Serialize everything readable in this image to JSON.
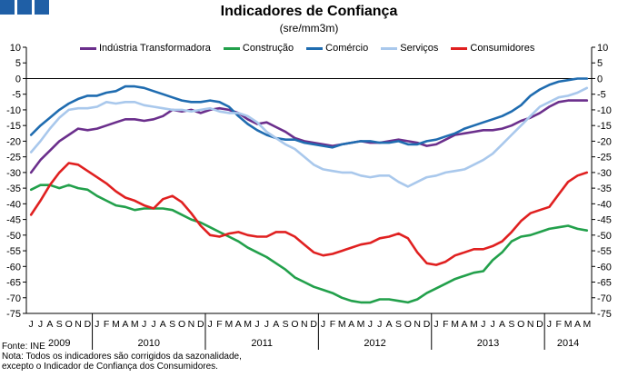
{
  "title": "Indicadores de Confiança",
  "subtitle": "(sre/mm3m)",
  "source": "Fonte: INE",
  "note": "Nota: Todos os indicadores são corrigidos da sazonalidade, excepto o Indicador de Confiança dos Consumidores.",
  "chart_data": {
    "type": "line",
    "ylim": [
      -75,
      10
    ],
    "yticks": [
      10,
      5,
      0,
      -5,
      -10,
      -15,
      -20,
      -25,
      -30,
      -35,
      -40,
      -45,
      -50,
      -55,
      -60,
      -65,
      -70,
      -75
    ],
    "month_labels": [
      "J",
      "J",
      "A",
      "S",
      "O",
      "N",
      "D",
      "J",
      "F",
      "M",
      "A",
      "M",
      "J",
      "J",
      "A",
      "S",
      "O",
      "N",
      "D",
      "J",
      "F",
      "M",
      "A",
      "M",
      "J",
      "J",
      "A",
      "S",
      "O",
      "N",
      "D",
      "J",
      "F",
      "M",
      "A",
      "M",
      "J",
      "J",
      "A",
      "S",
      "O",
      "N",
      "D",
      "J",
      "F",
      "M",
      "A",
      "M",
      "J",
      "J",
      "A",
      "S",
      "O",
      "N",
      "D",
      "J",
      "F",
      "M",
      "A",
      "M"
    ],
    "years": [
      {
        "label": "2009",
        "span": 7
      },
      {
        "label": "2010",
        "span": 12
      },
      {
        "label": "2011",
        "span": 12
      },
      {
        "label": "2012",
        "span": 12
      },
      {
        "label": "2013",
        "span": 12
      },
      {
        "label": "2014",
        "span": 5
      }
    ],
    "series": [
      {
        "name": "Indústria Transformadora",
        "color": "#6b2f8c",
        "values": [
          -30,
          -26,
          -23,
          -20,
          -18,
          -16,
          -16.5,
          -16,
          -15,
          -14,
          -13,
          -13,
          -13.5,
          -13,
          -12,
          -10,
          -10.5,
          -10,
          -11,
          -10,
          -9.5,
          -10,
          -11,
          -13,
          -14.5,
          -14,
          -15.5,
          -17,
          -19,
          -20,
          -20.5,
          -21,
          -21.5,
          -21,
          -20.5,
          -20,
          -20.5,
          -20.5,
          -20,
          -19.5,
          -20,
          -20.5,
          -21.5,
          -21,
          -19.5,
          -18,
          -17.5,
          -17,
          -16.5,
          -16.5,
          -16,
          -15,
          -13.5,
          -12.5,
          -11,
          -9,
          -7.5,
          -7,
          -7,
          -7
        ]
      },
      {
        "name": "Construção",
        "color": "#22a04b",
        "values": [
          -35.5,
          -34,
          -34,
          -35,
          -34,
          -35,
          -35.5,
          -37.5,
          -39,
          -40.5,
          -41,
          -42,
          -41.5,
          -41.5,
          -41.5,
          -42,
          -43.5,
          -45,
          -46,
          -47.5,
          -49,
          -50.5,
          -52,
          -54,
          -55.5,
          -57,
          -59,
          -61,
          -63.5,
          -65,
          -66.5,
          -67.5,
          -68.5,
          -70,
          -71,
          -71.5,
          -71.5,
          -70.5,
          -70.5,
          -71,
          -71.5,
          -70.5,
          -68.5,
          -67,
          -65.5,
          -64,
          -63,
          -62,
          -61.5,
          -58,
          -55.5,
          -52,
          -50.5,
          -50,
          -49,
          -48,
          -47.5,
          -47,
          -48,
          -48.5
        ]
      },
      {
        "name": "Comércio",
        "color": "#1f6cb0",
        "values": [
          -18,
          -15,
          -12.5,
          -10,
          -8,
          -6.5,
          -5.5,
          -5.5,
          -4.5,
          -4,
          -2.5,
          -2.5,
          -3,
          -4,
          -5,
          -6,
          -7,
          -7.5,
          -7.5,
          -7,
          -7.5,
          -9,
          -12,
          -14.5,
          -16.5,
          -18,
          -19,
          -19.5,
          -19.5,
          -20.5,
          -21,
          -21.5,
          -22,
          -21,
          -20.5,
          -20,
          -20,
          -20.5,
          -20.5,
          -20,
          -21,
          -21,
          -20,
          -19.5,
          -18.5,
          -17.5,
          -16,
          -15,
          -14,
          -13,
          -12,
          -10.5,
          -8.5,
          -5.5,
          -3.5,
          -2,
          -1,
          -0.5,
          0,
          0
        ]
      },
      {
        "name": "Serviços",
        "color": "#a9c8ec",
        "values": [
          -23.5,
          -20,
          -16,
          -12.5,
          -10,
          -9.5,
          -9.5,
          -9,
          -7.5,
          -8,
          -7.5,
          -7.5,
          -8.5,
          -9,
          -9.5,
          -10,
          -10,
          -10.5,
          -10,
          -9.5,
          -10.5,
          -11,
          -11,
          -12,
          -14,
          -17,
          -19,
          -21,
          -22.5,
          -25,
          -27.5,
          -29,
          -29.5,
          -30,
          -30,
          -31,
          -31.5,
          -31,
          -31,
          -33,
          -34.5,
          -33,
          -31.5,
          -31,
          -30,
          -29.5,
          -29,
          -27.5,
          -26,
          -24,
          -21,
          -18,
          -15,
          -12,
          -9,
          -7.5,
          -6,
          -5.5,
          -4.5,
          -3
        ]
      },
      {
        "name": "Consumidores",
        "color": "#e02020",
        "values": [
          -43.5,
          -39,
          -34,
          -30,
          -27,
          -27.5,
          -29.5,
          -31.5,
          -33.5,
          -36,
          -38,
          -39,
          -40.5,
          -41.5,
          -38.5,
          -37.5,
          -39.5,
          -43,
          -47,
          -50,
          -50.5,
          -49.5,
          -49,
          -50,
          -50.5,
          -50.5,
          -49,
          -49,
          -50.5,
          -53,
          -55.5,
          -56.5,
          -56,
          -55,
          -54,
          -53,
          -52.5,
          -51,
          -50.5,
          -49.5,
          -51,
          -55.5,
          -59,
          -59.5,
          -58.5,
          -56.5,
          -55.5,
          -54.5,
          -54.5,
          -53.5,
          -52,
          -49,
          -45.5,
          -43,
          -42,
          -41,
          -37,
          -33,
          -31,
          -30
        ]
      }
    ]
  }
}
